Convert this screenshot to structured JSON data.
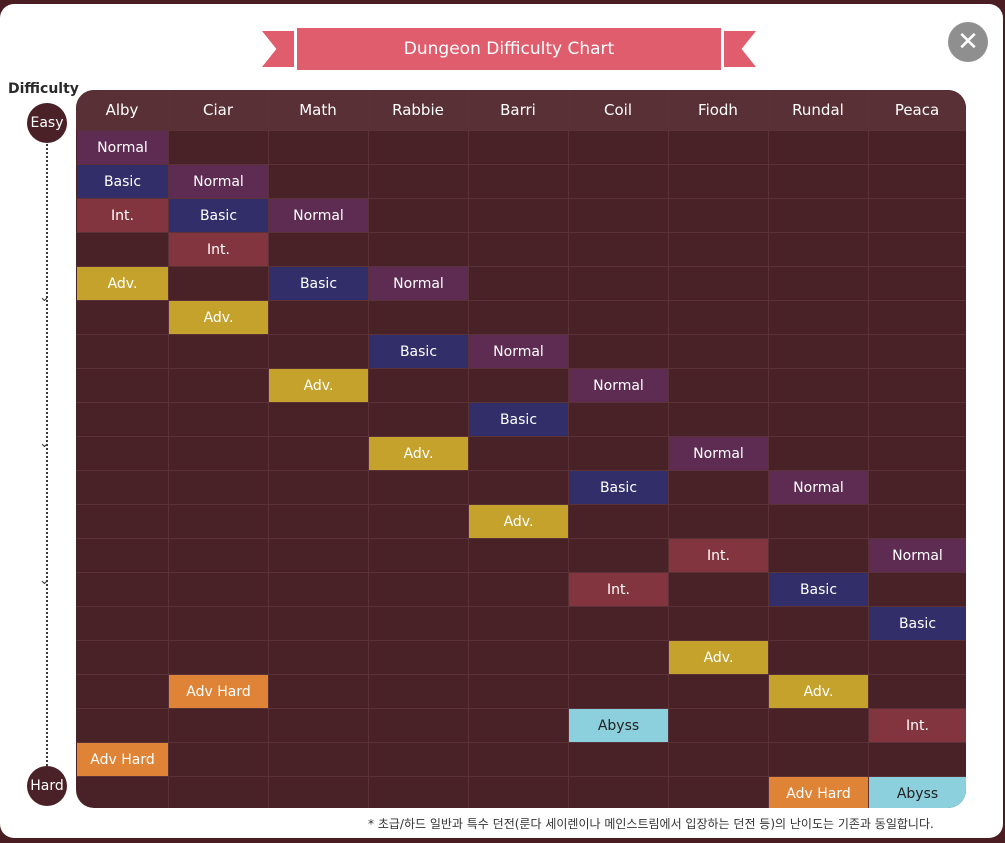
{
  "title": "Dungeon Difficulty Chart",
  "close_icon_label": "close-icon",
  "difficulty_axis": {
    "label": "Difficulty",
    "top": "Easy",
    "bottom": "Hard"
  },
  "characters": [
    "Alby",
    "Ciar",
    "Math",
    "Rabbie",
    "Barri",
    "Coil",
    "Fiodh",
    "Rundal",
    "Peaca"
  ],
  "levels": {
    "Normal": "#5e2c52",
    "Basic": "#312e69",
    "Int.": "#82343f",
    "Adv.": "#c4a22c",
    "Adv Hard": "#df8436",
    "Abyss": "#8bd0dc"
  },
  "cells": [
    {
      "col": 0,
      "row": 0,
      "label": "Normal"
    },
    {
      "col": 0,
      "row": 1,
      "label": "Basic"
    },
    {
      "col": 0,
      "row": 2,
      "label": "Int."
    },
    {
      "col": 0,
      "row": 4,
      "label": "Adv."
    },
    {
      "col": 0,
      "row": 18,
      "label": "Adv Hard"
    },
    {
      "col": 1,
      "row": 1,
      "label": "Normal"
    },
    {
      "col": 1,
      "row": 2,
      "label": "Basic"
    },
    {
      "col": 1,
      "row": 3,
      "label": "Int."
    },
    {
      "col": 1,
      "row": 5,
      "label": "Adv."
    },
    {
      "col": 1,
      "row": 16,
      "label": "Adv Hard"
    },
    {
      "col": 2,
      "row": 2,
      "label": "Normal"
    },
    {
      "col": 2,
      "row": 4,
      "label": "Basic"
    },
    {
      "col": 2,
      "row": 7,
      "label": "Adv."
    },
    {
      "col": 3,
      "row": 4,
      "label": "Normal"
    },
    {
      "col": 3,
      "row": 6,
      "label": "Basic"
    },
    {
      "col": 3,
      "row": 9,
      "label": "Adv."
    },
    {
      "col": 4,
      "row": 6,
      "label": "Normal"
    },
    {
      "col": 4,
      "row": 8,
      "label": "Basic"
    },
    {
      "col": 4,
      "row": 11,
      "label": "Adv."
    },
    {
      "col": 5,
      "row": 7,
      "label": "Normal"
    },
    {
      "col": 5,
      "row": 10,
      "label": "Basic"
    },
    {
      "col": 5,
      "row": 13,
      "label": "Int."
    },
    {
      "col": 5,
      "row": 17,
      "label": "Abyss"
    },
    {
      "col": 6,
      "row": 9,
      "label": "Normal"
    },
    {
      "col": 6,
      "row": 12,
      "label": "Int."
    },
    {
      "col": 6,
      "row": 15,
      "label": "Adv."
    },
    {
      "col": 7,
      "row": 10,
      "label": "Normal"
    },
    {
      "col": 7,
      "row": 13,
      "label": "Basic"
    },
    {
      "col": 7,
      "row": 16,
      "label": "Adv."
    },
    {
      "col": 7,
      "row": 19,
      "label": "Adv Hard"
    },
    {
      "col": 8,
      "row": 12,
      "label": "Normal"
    },
    {
      "col": 8,
      "row": 14,
      "label": "Basic"
    },
    {
      "col": 8,
      "row": 17,
      "label": "Int."
    },
    {
      "col": 8,
      "row": 19,
      "label": "Abyss"
    }
  ],
  "footnote": "* 초급/하드 일반과 특수 던전(룬다 세이렌이나 메인스트림에서 입장하는 던전 등)의 난이도는 기존과 동일합니다."
}
